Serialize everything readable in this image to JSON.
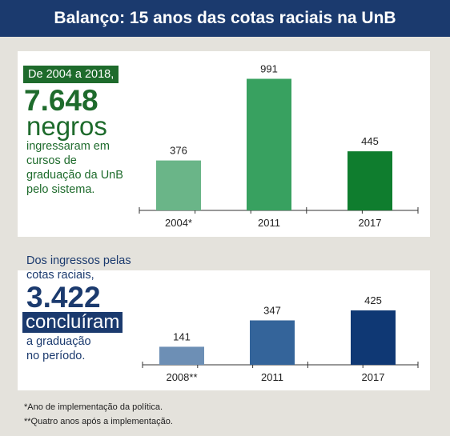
{
  "header": {
    "title": "Balanço: 15 anos das cotas raciais na UnB"
  },
  "colors": {
    "header_bg": "#1b3a6e",
    "green_text": "#1e6b2c",
    "blue_text": "#1b3a6e"
  },
  "panel1": {
    "lead": "De 2004 a 2018,",
    "number": "7.648",
    "word": "negros",
    "body": [
      "ingressaram em",
      "cursos de",
      "graduação da UnB",
      "pelo sistema."
    ]
  },
  "panel2": {
    "lead": [
      "Dos ingressos pelas",
      "cotas raciais,"
    ],
    "number": "3.422",
    "word": "concluíram",
    "body": [
      "a graduação",
      "no período."
    ]
  },
  "chart_data": [
    {
      "type": "bar",
      "categories": [
        "2004*",
        "2011",
        "2017"
      ],
      "values": [
        376,
        991,
        445
      ],
      "colors": [
        "#6ab588",
        "#38a160",
        "#0f7d2e"
      ],
      "ylim": [
        0,
        1000
      ]
    },
    {
      "type": "bar",
      "categories": [
        "2008**",
        "2011",
        "2017"
      ],
      "values": [
        141,
        347,
        425
      ],
      "colors": [
        "#6d8fb5",
        "#34649a",
        "#0f3874"
      ],
      "ylim": [
        0,
        1000
      ]
    }
  ],
  "footnotes": [
    "*Ano de implementação da política.",
    "**Quatro anos após a implementação."
  ]
}
